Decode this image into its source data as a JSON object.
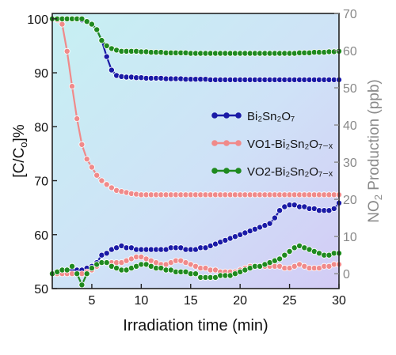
{
  "chart_data": {
    "type": "line",
    "xlabel": "Irradiation time (min)",
    "ylabel_left": "[C/Co]%",
    "ylabel_right": "NO2 Production (ppb)",
    "x_ticks": [
      5,
      10,
      15,
      20,
      25,
      30
    ],
    "y_left_ticks": [
      50,
      60,
      70,
      80,
      90,
      100
    ],
    "y_right_ticks": [
      0,
      10,
      20,
      30,
      40,
      50,
      60,
      70
    ],
    "xlim": [
      1,
      30
    ],
    "ylim_left": [
      50,
      101
    ],
    "ylim_right": [
      -4,
      70
    ],
    "legend_placement": "right-center",
    "x": [
      1,
      1.5,
      2,
      2.5,
      3,
      3.5,
      4,
      4.5,
      5,
      5.5,
      6,
      6.5,
      7,
      7.5,
      8,
      8.5,
      9,
      9.5,
      10,
      10.5,
      11,
      11.5,
      12,
      12.5,
      13,
      13.5,
      14,
      14.5,
      15,
      15.5,
      16,
      16.5,
      17,
      17.5,
      18,
      18.5,
      19,
      19.5,
      20,
      20.5,
      21,
      21.5,
      22,
      22.5,
      23,
      23.5,
      24,
      24.5,
      25,
      25.5,
      26,
      26.5,
      27,
      27.5,
      28,
      28.5,
      29,
      29.5,
      30
    ],
    "series": [
      {
        "name": "Bi2Sn2O7",
        "axis": "left",
        "color": "#1a1aa6",
        "values": [
          100,
          100,
          100,
          100,
          100,
          100,
          99.8,
          99.5,
          99,
          98,
          96,
          93,
          90.5,
          89.5,
          89.3,
          89.2,
          89.2,
          89.1,
          89.1,
          89,
          89,
          89,
          89,
          88.9,
          88.9,
          88.9,
          88.9,
          88.8,
          88.8,
          88.8,
          88.8,
          88.8,
          88.7,
          88.7,
          88.7,
          88.7,
          88.7,
          88.7,
          88.7,
          88.7,
          88.7,
          88.7,
          88.7,
          88.7,
          88.7,
          88.7,
          88.7,
          88.7,
          88.7,
          88.7,
          88.7,
          88.7,
          88.7,
          88.7,
          88.7,
          88.7,
          88.7,
          88.7,
          88.7
        ]
      },
      {
        "name": "VO1-Bi2Sn2O7-x",
        "axis": "left",
        "color": "#f08a8a",
        "values": [
          100,
          99.8,
          99,
          94,
          87.5,
          81.5,
          76.7,
          74,
          72.5,
          71,
          70,
          69.3,
          68.7,
          68.2,
          68,
          67.8,
          67.6,
          67.5,
          67.4,
          67.4,
          67.4,
          67.4,
          67.4,
          67.4,
          67.4,
          67.4,
          67.4,
          67.4,
          67.4,
          67.4,
          67.4,
          67.4,
          67.4,
          67.4,
          67.4,
          67.4,
          67.4,
          67.4,
          67.4,
          67.4,
          67.4,
          67.4,
          67.4,
          67.4,
          67.4,
          67.4,
          67.4,
          67.4,
          67.4,
          67.4,
          67.4,
          67.4,
          67.4,
          67.4,
          67.4,
          67.4,
          67.4,
          67.4,
          67.4
        ]
      },
      {
        "name": "VO2-Bi2Sn2O7-x",
        "axis": "left",
        "color": "#1f8a1f",
        "values": [
          100,
          100,
          100,
          100,
          100,
          100,
          100,
          99.5,
          99,
          98,
          96,
          95,
          94.5,
          94.2,
          94,
          94,
          94,
          94,
          93.9,
          93.9,
          93.8,
          93.8,
          93.8,
          93.7,
          93.7,
          93.7,
          93.7,
          93.7,
          93.6,
          93.6,
          93.6,
          93.6,
          93.6,
          93.6,
          93.6,
          93.6,
          93.6,
          93.6,
          93.6,
          93.6,
          93.6,
          93.6,
          93.6,
          93.6,
          93.6,
          93.6,
          93.6,
          93.6,
          93.6,
          93.6,
          93.7,
          93.7,
          93.7,
          93.8,
          93.8,
          93.8,
          93.9,
          93.9,
          94
        ]
      },
      {
        "name": "Bi2Sn2O7",
        "axis": "right",
        "color": "#1a1aa6",
        "values": [
          0,
          0,
          0.5,
          0.5,
          1,
          1,
          1,
          1.5,
          2,
          3,
          5,
          5.5,
          6.5,
          7,
          7.5,
          7,
          7,
          6.5,
          6.5,
          6.5,
          6.5,
          6.5,
          6.5,
          6.5,
          7,
          7,
          7,
          6.5,
          6.5,
          6.5,
          7,
          7,
          7.5,
          8,
          8.5,
          9,
          9.5,
          10,
          10.5,
          11,
          11.5,
          12,
          12.5,
          13,
          13.5,
          15,
          17,
          18,
          18.5,
          18.5,
          18,
          18,
          17.5,
          17.5,
          17,
          17,
          17,
          17.5,
          19
        ]
      },
      {
        "name": "VO1-Bi2Sn2O7-x",
        "axis": "right",
        "color": "#f08a8a",
        "values": [
          0,
          0,
          0,
          0,
          0,
          0,
          0,
          0.5,
          1,
          2,
          3,
          3,
          3,
          3,
          3,
          3.5,
          4,
          4.5,
          4.5,
          4,
          3.5,
          3,
          2.5,
          2.5,
          3,
          3.5,
          3.5,
          3,
          2.5,
          2,
          1.5,
          1.5,
          1,
          1,
          0.5,
          0.5,
          0.5,
          0.5,
          1,
          1.5,
          2,
          2,
          2,
          2,
          2,
          2,
          2,
          1.5,
          1.5,
          2,
          2.5,
          2,
          1.5,
          1.5,
          1.5,
          2,
          2,
          2.5,
          2.5
        ]
      },
      {
        "name": "VO2-Bi2Sn2O7-x",
        "axis": "right",
        "color": "#1f8a1f",
        "values": [
          0,
          0.5,
          1,
          1,
          2,
          0,
          -3,
          0,
          1.5,
          2.5,
          3,
          3,
          2,
          1.5,
          1,
          1,
          1.5,
          2,
          2.5,
          2.5,
          2,
          1.5,
          1.5,
          1,
          1,
          0.5,
          0.5,
          0.5,
          0,
          0,
          -1,
          -1,
          -1,
          -1,
          -0.5,
          -0.5,
          -0.5,
          0,
          0.5,
          1,
          1.5,
          2,
          2,
          2.5,
          3,
          3.5,
          4,
          5,
          6,
          7,
          7.5,
          7,
          6.5,
          6,
          5.5,
          5,
          5,
          5.5,
          5.5
        ]
      }
    ],
    "legend": {
      "entries": [
        {
          "text": "Bi₂Sn₂O₇",
          "color": "#1a1aa6"
        },
        {
          "text": "VO1-Bi₂Sn₂O₇₋ₓ",
          "color": "#f08a8a"
        },
        {
          "text": "VO2-Bi₂Sn₂O₇₋ₓ",
          "color": "#1f8a1f"
        }
      ]
    }
  }
}
